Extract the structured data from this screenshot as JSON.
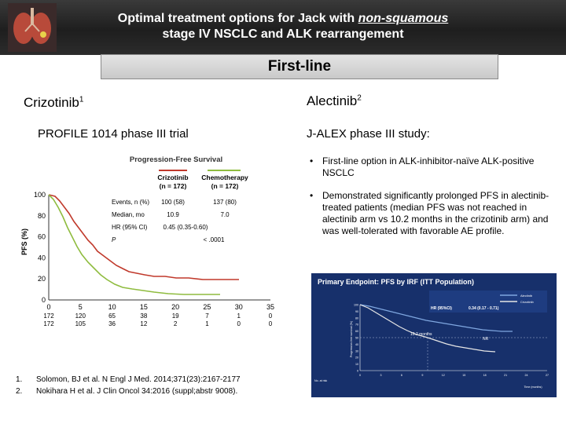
{
  "header": {
    "title_line1_prefix": "Optimal treatment options for Jack with ",
    "title_line1_emph": "non-squamous",
    "title_line2": "stage IV NSCLC and ALK rearrangement"
  },
  "section_label": "First-line",
  "left": {
    "drug": "Crizotinib",
    "drug_sup": "1",
    "trial": "PROFILE 1014 phase III trial",
    "figure": {
      "title": "Progression-Free Survival",
      "col1_head": "Crizotinib",
      "col1_n": "(n = 172)",
      "col2_head": "Chemotherapy",
      "col2_n": "(n = 172)",
      "rows": [
        {
          "label": "Events, n (%)",
          "v1": "100 (58)",
          "v2": "137 (80)"
        },
        {
          "label": "Median, mo",
          "v1": "10.9",
          "v2": "7.0"
        },
        {
          "label": "HR (95% CI)",
          "v1": "0.45 (0.35-0.60)",
          "v2": ""
        },
        {
          "label": "P",
          "v1": "",
          "v2": "< .0001"
        }
      ],
      "ylabel": "PFS (%)",
      "yticks": [
        "0",
        "20",
        "40",
        "60",
        "80",
        "100"
      ],
      "xticks": [
        "0",
        "5",
        "10",
        "15",
        "20",
        "25",
        "30",
        "35"
      ],
      "at_risk_row1": [
        "172",
        "120",
        "65",
        "38",
        "19",
        "7",
        "1",
        "0"
      ],
      "at_risk_row2": [
        "172",
        "105",
        "36",
        "12",
        "2",
        "1",
        "0",
        "0"
      ],
      "colors": {
        "crizotinib": "#c0392b",
        "chemotherapy": "#8fbc3f"
      }
    }
  },
  "right": {
    "drug": "Alectinib",
    "drug_sup": "2",
    "trial": "J-ALEX phase III study:",
    "bullets": [
      "First-line option in ALK-inhibitor-naïve ALK-positive NSCLC",
      "Demonstrated significantly prolonged PFS in alectinib-treated patients (median PFS was not reached in alectinib arm vs 10.2 months in the crizotinib arm) and was well-tolerated with favorable AE profile."
    ],
    "bullet_glyph": "•",
    "figure": {
      "title": "Primary Endpoint: PFS by IRF (ITT Population)",
      "median_label": "10.2 months",
      "nr_label": "NR",
      "hr_label": "HR (95%CI)",
      "hr_value": "0.34 (0.17 - 0.71)",
      "legend1": "Alectinib",
      "legend2": "Crizotinib",
      "xlabel": "Time (months)",
      "ylabel": "Progression-free survival (%)",
      "yticks": [
        "0",
        "10",
        "20",
        "30",
        "40",
        "50",
        "60",
        "70",
        "80",
        "90",
        "100"
      ],
      "xticks": [
        "0",
        "3",
        "6",
        "9",
        "12",
        "15",
        "18",
        "21",
        "24",
        "27"
      ],
      "at_risk_label": "No. at risk",
      "colors": {
        "background": "#17306b",
        "alectinib": "#7fa7e0",
        "crizotinib": "#e6e6e6"
      }
    }
  },
  "references": [
    {
      "num": "1.",
      "text": "Solomon, BJ et al. N Engl J Med. 2014;371(23):2167-2177"
    },
    {
      "num": "2.",
      "text": "Nokihara H et al. J Clin Oncol 34:2016 (suppl;abstr 9008)."
    }
  ]
}
